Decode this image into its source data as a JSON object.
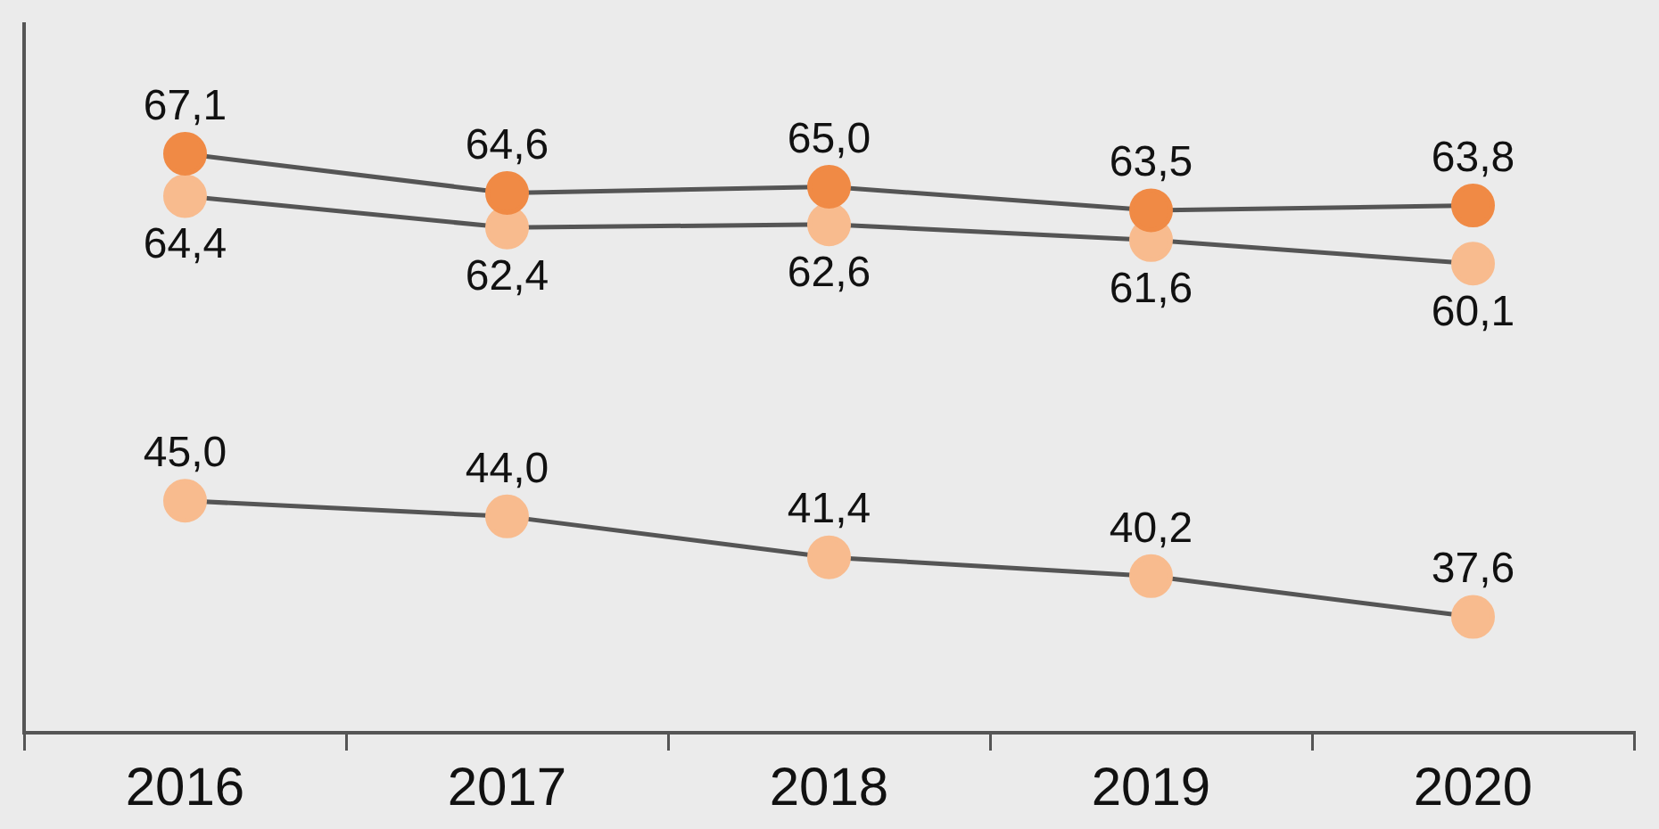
{
  "chart_data": {
    "type": "line",
    "categories": [
      "2016",
      "2017",
      "2018",
      "2019",
      "2020"
    ],
    "series": [
      {
        "color": "#f08a45",
        "values": [
          67.1,
          64.6,
          65.0,
          63.5,
          63.8
        ],
        "value_labels": [
          "67,1",
          "64,6",
          "65,0",
          "63,5",
          "63,8"
        ]
      },
      {
        "color": "#f8bb8e",
        "values": [
          64.4,
          62.4,
          62.6,
          61.6,
          60.1
        ],
        "value_labels": [
          "64,4",
          "62,4",
          "62,6",
          "61,6",
          "60,1"
        ]
      },
      {
        "color": "#f8bb8e",
        "values": [
          45.0,
          44.0,
          41.4,
          40.2,
          37.6
        ],
        "value_labels": [
          "45,0",
          "44,0",
          "41,4",
          "40,2",
          "37,6"
        ]
      }
    ],
    "tick_labels": "x",
    "legend": false,
    "marker": "circle",
    "line_style": "solid"
  }
}
